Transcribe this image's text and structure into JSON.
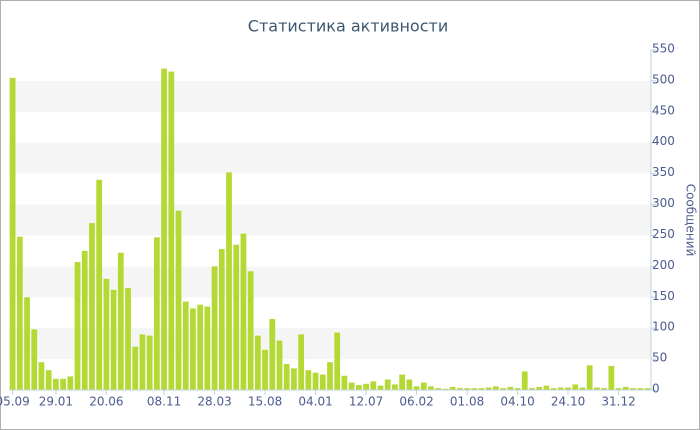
{
  "chart_data": {
    "type": "bar",
    "title": "Статистика активности",
    "y_label": "Сообщений",
    "categories": [
      "05.09",
      null,
      null,
      null,
      null,
      null,
      "29.01",
      null,
      null,
      null,
      null,
      null,
      null,
      "20.06",
      null,
      null,
      null,
      null,
      null,
      null,
      null,
      "08.11",
      null,
      null,
      null,
      null,
      null,
      null,
      "28.03",
      null,
      null,
      null,
      null,
      null,
      null,
      "15.08",
      null,
      null,
      null,
      null,
      null,
      null,
      "04.01",
      null,
      null,
      null,
      null,
      null,
      null,
      "12.07",
      null,
      null,
      null,
      null,
      null,
      null,
      "06.02",
      null,
      null,
      null,
      null,
      null,
      null,
      "01.08",
      null,
      null,
      null,
      null,
      null,
      null,
      "04.10",
      null,
      null,
      null,
      null,
      null,
      null,
      "24.10",
      null,
      null,
      null,
      null,
      null,
      null,
      "31.12",
      null,
      null,
      null,
      null
    ],
    "values": [
      505,
      248,
      150,
      98,
      45,
      32,
      18,
      18,
      22,
      207,
      225,
      270,
      340,
      180,
      162,
      222,
      165,
      70,
      90,
      88,
      247,
      520,
      515,
      290,
      143,
      132,
      138,
      135,
      200,
      228,
      352,
      235,
      253,
      192,
      88,
      65,
      115,
      80,
      42,
      35,
      90,
      32,
      28,
      25,
      45,
      93,
      23,
      12,
      8,
      10,
      14,
      7,
      17,
      9,
      25,
      17,
      6,
      12,
      6,
      3,
      2,
      5,
      3,
      3,
      3,
      3,
      4,
      6,
      3,
      5,
      3,
      30,
      3,
      5,
      7,
      3,
      4,
      4,
      9,
      4,
      40,
      4,
      3,
      39,
      3,
      5,
      3,
      3,
      3
    ],
    "color": "#b5d934",
    "ylim": [
      0,
      550
    ],
    "yticks": [
      0,
      50,
      100,
      150,
      200,
      250,
      300,
      350,
      400,
      450,
      500,
      550
    ],
    "grid": "bands",
    "band_color": "#f5f5f5",
    "y_axis_side": "right"
  }
}
